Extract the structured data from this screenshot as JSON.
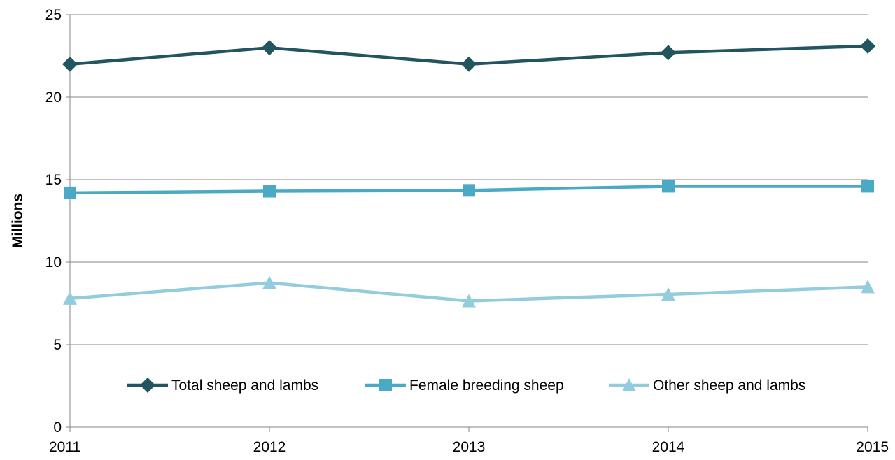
{
  "chart_data": {
    "type": "line",
    "title": "",
    "xlabel": "",
    "ylabel": "Millions",
    "x": [
      "2011",
      "2012",
      "2013",
      "2014",
      "2015"
    ],
    "ylim": [
      0,
      25
    ],
    "yticks": [
      "0",
      "5",
      "10",
      "15",
      "20",
      "25"
    ],
    "grid": true,
    "legend_position": "bottom-inside",
    "series": [
      {
        "name": "Total sheep and lambs",
        "marker": "diamond",
        "color": "#22555f",
        "values": [
          22.0,
          23.0,
          22.0,
          22.7,
          23.1
        ]
      },
      {
        "name": "Female breeding sheep",
        "marker": "square",
        "color": "#4aaac6",
        "values": [
          14.2,
          14.3,
          14.35,
          14.6,
          14.6
        ]
      },
      {
        "name": "Other sheep and lambs",
        "marker": "triangle",
        "color": "#93cddd",
        "values": [
          7.8,
          8.75,
          7.65,
          8.05,
          8.5
        ]
      }
    ]
  }
}
